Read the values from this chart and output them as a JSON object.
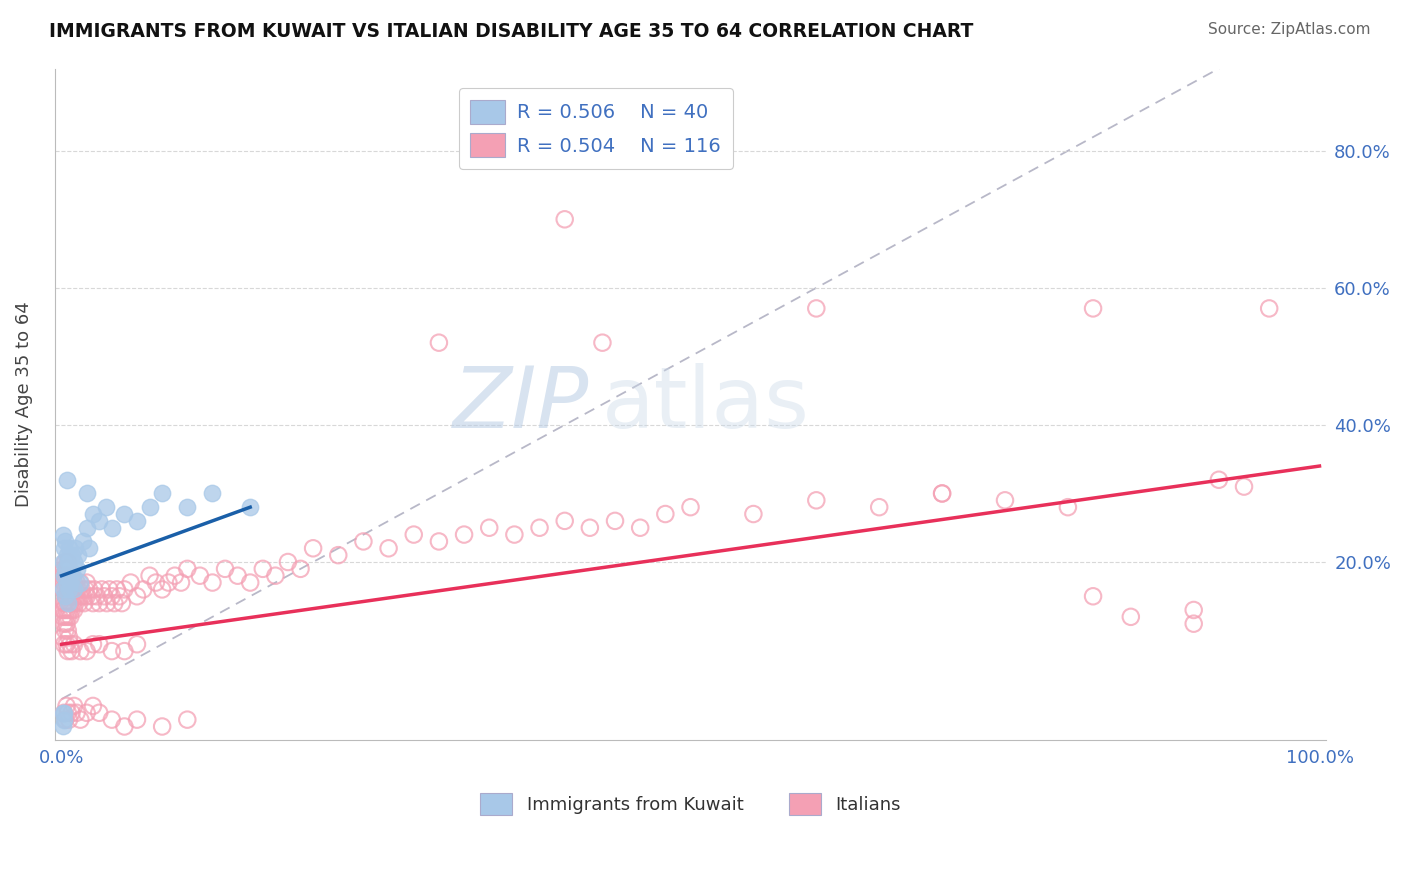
{
  "title": "IMMIGRANTS FROM KUWAIT VS ITALIAN DISABILITY AGE 35 TO 64 CORRELATION CHART",
  "source": "Source: ZipAtlas.com",
  "ylabel": "Disability Age 35 to 64",
  "kuwait_R": 0.506,
  "kuwait_N": 40,
  "italian_R": 0.504,
  "italian_N": 116,
  "legend_entries": [
    "Immigrants from Kuwait",
    "Italians"
  ],
  "blue_scatter_color": "#a8c8e8",
  "blue_line_color": "#1a5fa8",
  "pink_scatter_color": "#f4a0b4",
  "pink_line_color": "#e8305a",
  "diagonal_color": "#b8b8c8",
  "watermark_color": "#d0d8e8",
  "background_color": "#ffffff",
  "grid_color": "#d8d8d8",
  "tick_color": "#4070c0",
  "title_color": "#111111",
  "source_color": "#666666",
  "ylabel_color": "#444444",
  "xlim": [
    -0.005,
    1.005
  ],
  "ylim": [
    -0.06,
    0.92
  ],
  "x_tick_positions": [
    0.0,
    1.0
  ],
  "x_tick_labels": [
    "0.0%",
    "100.0%"
  ],
  "y_tick_positions": [
    0.2,
    0.4,
    0.6,
    0.8
  ],
  "y_tick_labels": [
    "20.0%",
    "40.0%",
    "60.0%",
    "80.0%"
  ],
  "kuwait_x": [
    0.001,
    0.001,
    0.001,
    0.002,
    0.002,
    0.002,
    0.003,
    0.003,
    0.003,
    0.004,
    0.004,
    0.005,
    0.005,
    0.005,
    0.006,
    0.006,
    0.007,
    0.007,
    0.008,
    0.009,
    0.01,
    0.01,
    0.011,
    0.012,
    0.013,
    0.015,
    0.017,
    0.02,
    0.022,
    0.025,
    0.03,
    0.035,
    0.04,
    0.05,
    0.06,
    0.07,
    0.08,
    0.1,
    0.12,
    0.15
  ],
  "kuwait_y": [
    -0.02,
    0.16,
    0.2,
    0.18,
    0.22,
    -0.03,
    0.19,
    0.23,
    0.15,
    0.17,
    0.21,
    0.18,
    0.14,
    0.2,
    0.16,
    0.22,
    0.19,
    0.17,
    0.21,
    0.18,
    0.2,
    0.16,
    0.22,
    0.19,
    0.21,
    0.17,
    0.23,
    0.25,
    0.22,
    0.27,
    0.26,
    0.28,
    0.25,
    0.27,
    0.26,
    0.28,
    0.3,
    0.28,
    0.3,
    0.28
  ],
  "kuwait_extra": [
    [
      0.004,
      0.32
    ],
    [
      0.02,
      0.3
    ],
    [
      0.001,
      -0.04
    ],
    [
      0.002,
      -0.02
    ],
    [
      0.001,
      0.24
    ]
  ],
  "italian_x_low": [
    0.001,
    0.001,
    0.001,
    0.001,
    0.002,
    0.002,
    0.002,
    0.002,
    0.002,
    0.003,
    0.003,
    0.003,
    0.003,
    0.003,
    0.003,
    0.004,
    0.004,
    0.004,
    0.004,
    0.004,
    0.005,
    0.005,
    0.005,
    0.005,
    0.005,
    0.005,
    0.006,
    0.006,
    0.006,
    0.006,
    0.007,
    0.007,
    0.007,
    0.008,
    0.008,
    0.008,
    0.009,
    0.009,
    0.01,
    0.01,
    0.01,
    0.011,
    0.011,
    0.012,
    0.012,
    0.013,
    0.014,
    0.015,
    0.015,
    0.016,
    0.017,
    0.018,
    0.019,
    0.02,
    0.02,
    0.022,
    0.024,
    0.025,
    0.026,
    0.028,
    0.03,
    0.032,
    0.034,
    0.036,
    0.038,
    0.04,
    0.042,
    0.044,
    0.046,
    0.048,
    0.05,
    0.055,
    0.06,
    0.065,
    0.07,
    0.075,
    0.08,
    0.085,
    0.09,
    0.095,
    0.1,
    0.11,
    0.12,
    0.13,
    0.14,
    0.15,
    0.16,
    0.17,
    0.18,
    0.19,
    0.2,
    0.22,
    0.24,
    0.26,
    0.28,
    0.3,
    0.32,
    0.34,
    0.36,
    0.38,
    0.4,
    0.42,
    0.44,
    0.46,
    0.48,
    0.5,
    0.55,
    0.6,
    0.65,
    0.7,
    0.75,
    0.8,
    0.85,
    0.9,
    0.92,
    0.94
  ],
  "italian_y_low": [
    0.13,
    0.16,
    0.12,
    0.18,
    0.14,
    0.17,
    0.11,
    0.19,
    0.13,
    0.15,
    0.18,
    0.12,
    0.16,
    0.2,
    0.14,
    0.13,
    0.17,
    0.15,
    0.19,
    0.11,
    0.14,
    0.18,
    0.16,
    0.12,
    0.2,
    0.1,
    0.15,
    0.17,
    0.13,
    0.19,
    0.14,
    0.16,
    0.12,
    0.15,
    0.18,
    0.13,
    0.16,
    0.14,
    0.15,
    0.17,
    0.13,
    0.16,
    0.14,
    0.17,
    0.15,
    0.16,
    0.14,
    0.15,
    0.17,
    0.16,
    0.15,
    0.14,
    0.16,
    0.15,
    0.17,
    0.16,
    0.15,
    0.14,
    0.16,
    0.15,
    0.14,
    0.16,
    0.15,
    0.14,
    0.16,
    0.15,
    0.14,
    0.16,
    0.15,
    0.14,
    0.16,
    0.17,
    0.15,
    0.16,
    0.18,
    0.17,
    0.16,
    0.17,
    0.18,
    0.17,
    0.19,
    0.18,
    0.17,
    0.19,
    0.18,
    0.17,
    0.19,
    0.18,
    0.2,
    0.19,
    0.22,
    0.21,
    0.23,
    0.22,
    0.24,
    0.23,
    0.24,
    0.25,
    0.24,
    0.25,
    0.26,
    0.25,
    0.26,
    0.25,
    0.27,
    0.28,
    0.27,
    0.29,
    0.28,
    0.3,
    0.29,
    0.28,
    0.12,
    0.13,
    0.32,
    0.31
  ],
  "italian_low_extra": [
    [
      0.001,
      0.09
    ],
    [
      0.002,
      0.08
    ],
    [
      0.003,
      0.1
    ],
    [
      0.004,
      0.08
    ],
    [
      0.005,
      0.07
    ],
    [
      0.006,
      0.09
    ],
    [
      0.007,
      0.08
    ],
    [
      0.008,
      0.07
    ],
    [
      0.01,
      0.08
    ],
    [
      0.015,
      0.07
    ],
    [
      0.02,
      0.07
    ],
    [
      0.025,
      0.08
    ],
    [
      0.03,
      0.08
    ],
    [
      0.04,
      0.07
    ],
    [
      0.05,
      0.07
    ],
    [
      0.06,
      0.08
    ],
    [
      0.002,
      -0.02
    ],
    [
      0.003,
      -0.03
    ],
    [
      0.004,
      -0.01
    ],
    [
      0.005,
      -0.02
    ],
    [
      0.006,
      -0.03
    ],
    [
      0.008,
      -0.02
    ],
    [
      0.01,
      -0.01
    ],
    [
      0.012,
      -0.02
    ],
    [
      0.015,
      -0.03
    ],
    [
      0.02,
      -0.02
    ],
    [
      0.025,
      -0.01
    ],
    [
      0.03,
      -0.02
    ],
    [
      0.04,
      -0.03
    ],
    [
      0.05,
      -0.04
    ],
    [
      0.06,
      -0.03
    ],
    [
      0.08,
      -0.04
    ],
    [
      0.1,
      -0.03
    ]
  ],
  "italian_high_outliers": [
    [
      0.3,
      0.52
    ],
    [
      0.43,
      0.52
    ],
    [
      0.6,
      0.57
    ],
    [
      0.82,
      0.57
    ],
    [
      0.96,
      0.57
    ],
    [
      0.7,
      0.3
    ],
    [
      0.82,
      0.15
    ],
    [
      0.9,
      0.11
    ],
    [
      0.4,
      0.7
    ]
  ],
  "italian_line_x": [
    0.0,
    1.0
  ],
  "italian_line_y": [
    0.08,
    0.34
  ],
  "kuwait_line_x": [
    0.0,
    0.15
  ],
  "kuwait_line_y": [
    0.18,
    0.28
  ]
}
